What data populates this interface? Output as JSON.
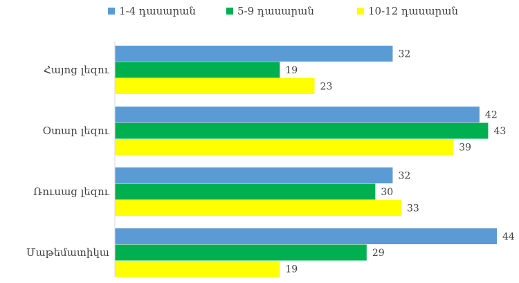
{
  "chart_data": {
    "type": "bar",
    "orientation": "horizontal",
    "categories": [
      "Հայոց լեզու",
      "Օտար լեզու",
      "Ռուսաց լեզու",
      "Մաթեմատիկա"
    ],
    "series": [
      {
        "name": "1-4 դասարան",
        "color": "#5b9bd5",
        "values": [
          32,
          42,
          32,
          44
        ]
      },
      {
        "name": "5-9 դասարան",
        "color": "#00b050",
        "values": [
          19,
          43,
          30,
          29
        ]
      },
      {
        "name": "10-12 դասարան",
        "color": "#ffff00",
        "values": [
          23,
          39,
          33,
          19
        ]
      }
    ],
    "title": "",
    "xlabel": "",
    "ylabel": "",
    "xlim": [
      0,
      44
    ],
    "grid": false,
    "data_labels": true,
    "legend_position": "top"
  }
}
